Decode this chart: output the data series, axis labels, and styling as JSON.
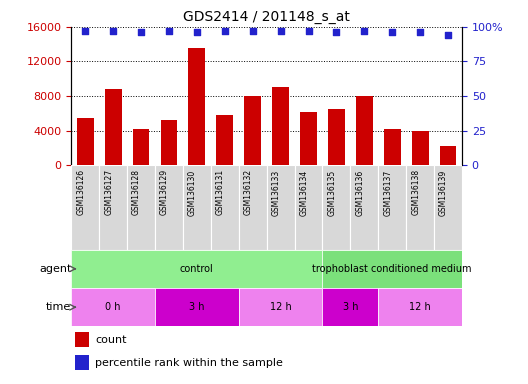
{
  "title": "GDS2414 / 201148_s_at",
  "samples": [
    "GSM136126",
    "GSM136127",
    "GSM136128",
    "GSM136129",
    "GSM136130",
    "GSM136131",
    "GSM136132",
    "GSM136133",
    "GSM136134",
    "GSM136135",
    "GSM136136",
    "GSM136137",
    "GSM136138",
    "GSM136139"
  ],
  "counts": [
    5500,
    8800,
    4200,
    5200,
    13500,
    5800,
    8000,
    9000,
    6200,
    6500,
    8000,
    4200,
    4000,
    2200
  ],
  "percentile_ranks": [
    97,
    97,
    96,
    97,
    96,
    97,
    97,
    97,
    97,
    96,
    97,
    96,
    96,
    94
  ],
  "bar_color": "#cc0000",
  "dot_color": "#2222cc",
  "ylim_left": [
    0,
    16000
  ],
  "ylim_right": [
    0,
    100
  ],
  "yticks_left": [
    0,
    4000,
    8000,
    12000,
    16000
  ],
  "ytick_labels_left": [
    "0",
    "4000",
    "8000",
    "12000",
    "16000"
  ],
  "yticks_right": [
    0,
    25,
    50,
    75,
    100
  ],
  "ytick_labels_right": [
    "0",
    "25",
    "50",
    "75",
    "100%"
  ],
  "agent_groups": [
    {
      "label": "control",
      "start": 0,
      "end": 9,
      "color": "#90ee90"
    },
    {
      "label": "trophoblast conditioned medium",
      "start": 9,
      "end": 14,
      "color": "#7be07b"
    }
  ],
  "time_groups": [
    {
      "label": "0 h",
      "start": 0,
      "end": 3,
      "color": "#ee82ee"
    },
    {
      "label": "3 h",
      "start": 3,
      "end": 6,
      "color": "#cc00cc"
    },
    {
      "label": "12 h",
      "start": 6,
      "end": 9,
      "color": "#ee82ee"
    },
    {
      "label": "3 h",
      "start": 9,
      "end": 11,
      "color": "#cc00cc"
    },
    {
      "label": "12 h",
      "start": 11,
      "end": 14,
      "color": "#ee82ee"
    }
  ],
  "bg_color": "#ffffff",
  "tick_label_color_left": "#cc0000",
  "tick_label_color_right": "#2222cc",
  "xticklabel_bg": "#d8d8d8",
  "agent_label": "agent",
  "time_label": "time"
}
